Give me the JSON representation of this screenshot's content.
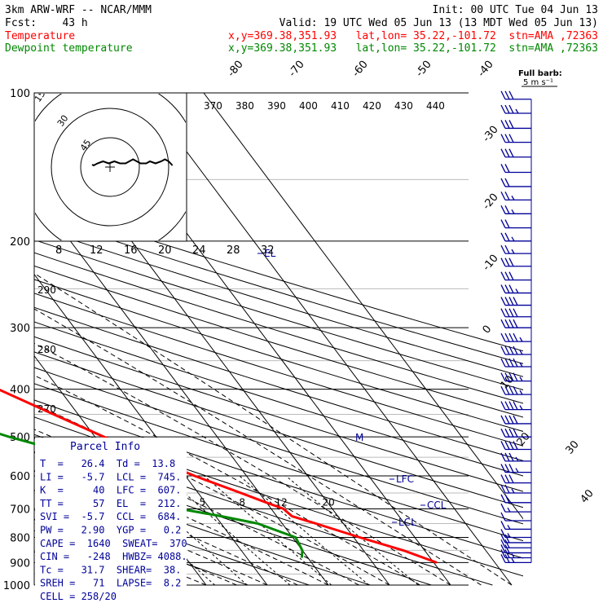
{
  "header": {
    "model": "3km ARW-WRF -- NCAR/MMM",
    "init": "Init: 00 UTC Tue 04 Jun 13",
    "fcst": "Fcst:    43 h",
    "valid": "Valid: 19 UTC Wed 05 Jun 13 (13 MDT Wed 05 Jun 13)",
    "temp_label": "Temperature",
    "temp_loc": "x,y=369.38,351.93   lat,lon= 35.22,-101.72  stn=AMA ,72363",
    "dew_label": "Dewpoint temperature",
    "dew_loc": "x,y=369.38,351.93   lat,lon= 35.22,-101.72  stn=AMA ,72363"
  },
  "colors": {
    "temperature": "#ff0000",
    "dewpoint": "#008800",
    "text_blue": "#000099",
    "grid": "#000000"
  },
  "chart_data": {
    "type": "line",
    "y_axis": "pressure (hPa, log)",
    "ylim": [
      1000,
      100
    ],
    "pressure_ticks": [
      "100",
      "200",
      "300",
      "400",
      "500",
      "600",
      "700",
      "800",
      "900",
      "1000"
    ],
    "isotherm_labels": [
      "-80",
      "-70",
      "-60",
      "-50",
      "-40",
      "-30",
      "-20",
      "-10",
      "0",
      "10",
      "20",
      "30",
      "40"
    ],
    "theta_labels_top": [
      "370",
      "380",
      "390",
      "400",
      "410",
      "420",
      "430",
      "440"
    ],
    "theta_labels_left": [
      "290",
      "280",
      "270"
    ],
    "mixing_ratio_labels": [
      "2",
      "3",
      "5",
      "8",
      "12",
      "20"
    ],
    "hodograph_speed_labels": [
      "8",
      "12",
      "16",
      "20",
      "24",
      "28",
      "32"
    ],
    "hodograph_ring_labels": [
      "15",
      "30",
      "45"
    ],
    "hodograph_units": "kts",
    "barb_label": "Full barb:",
    "barb_value": "5 m s⁻¹",
    "markers": {
      "lfc": "LFC",
      "lcl": "LCL",
      "ccl": "CCL",
      "el": "EL",
      "m": "M"
    },
    "series": [
      {
        "name": "Temperature",
        "color": "#ff0000",
        "pressure": [
          900,
          850,
          800,
          750,
          725,
          700,
          680,
          650,
          600,
          550,
          500,
          450,
          400,
          350,
          300,
          250,
          200,
          175,
          150,
          125,
          100
        ],
        "temperature_c": [
          30.5,
          26.5,
          21.0,
          15.5,
          12.5,
          12.0,
          10.0,
          7.0,
          1.5,
          -3.5,
          -8.5,
          -14.0,
          -20.0,
          -27.5,
          -36.0,
          -46.0,
          -56.5,
          -58.0,
          -59.0,
          -60.0,
          -62.0
        ]
      },
      {
        "name": "Dewpoint temperature",
        "color": "#008800",
        "pressure": [
          880,
          850,
          800,
          750,
          725,
          700,
          650,
          600,
          560,
          520,
          500,
          450,
          400,
          360,
          330,
          300,
          270,
          250,
          230,
          200,
          180,
          150,
          120,
          100
        ],
        "dewpoint_c": [
          9.0,
          10.0,
          10.5,
          6.0,
          1.0,
          -5.0,
          -10.0,
          -13.0,
          -15.0,
          -20.0,
          -24.0,
          -33.0,
          -43.0,
          -48.0,
          -48.5,
          -52.0,
          -60.0,
          -68.0,
          -75.0,
          -80.0,
          -82.0,
          -85.0,
          -88.0,
          -91.0
        ]
      }
    ],
    "winds": [
      {
        "p": 900,
        "flags": 0,
        "full": 2,
        "half": 1
      },
      {
        "p": 880,
        "flags": 0,
        "full": 2,
        "half": 1
      },
      {
        "p": 860,
        "flags": 0,
        "full": 2,
        "half": 0
      },
      {
        "p": 840,
        "flags": 0,
        "full": 2,
        "half": 0
      },
      {
        "p": 820,
        "flags": 0,
        "full": 2,
        "half": 0
      },
      {
        "p": 800,
        "flags": 0,
        "full": 1,
        "half": 1
      },
      {
        "p": 770,
        "flags": 0,
        "full": 1,
        "half": 1
      },
      {
        "p": 740,
        "flags": 0,
        "full": 1,
        "half": 0
      },
      {
        "p": 710,
        "flags": 0,
        "full": 1,
        "half": 1
      },
      {
        "p": 680,
        "flags": 0,
        "full": 2,
        "half": 0
      },
      {
        "p": 650,
        "flags": 0,
        "full": 2,
        "half": 1
      },
      {
        "p": 620,
        "flags": 0,
        "full": 3,
        "half": 0
      },
      {
        "p": 590,
        "flags": 0,
        "full": 3,
        "half": 1
      },
      {
        "p": 560,
        "flags": 0,
        "full": 3,
        "half": 1
      },
      {
        "p": 530,
        "flags": 0,
        "full": 4,
        "half": 0
      },
      {
        "p": 500,
        "flags": 0,
        "full": 4,
        "half": 0
      },
      {
        "p": 470,
        "flags": 0,
        "full": 4,
        "half": 0
      },
      {
        "p": 440,
        "flags": 0,
        "full": 4,
        "half": 1
      },
      {
        "p": 410,
        "flags": 0,
        "full": 4,
        "half": 1
      },
      {
        "p": 385,
        "flags": 0,
        "full": 4,
        "half": 1
      },
      {
        "p": 360,
        "flags": 0,
        "full": 4,
        "half": 1
      },
      {
        "p": 340,
        "flags": 0,
        "full": 4,
        "half": 1
      },
      {
        "p": 320,
        "flags": 0,
        "full": 4,
        "half": 1
      },
      {
        "p": 300,
        "flags": 0,
        "full": 4,
        "half": 0
      },
      {
        "p": 285,
        "flags": 0,
        "full": 4,
        "half": 0
      },
      {
        "p": 270,
        "flags": 0,
        "full": 4,
        "half": 0
      },
      {
        "p": 255,
        "flags": 0,
        "full": 3,
        "half": 1
      },
      {
        "p": 240,
        "flags": 0,
        "full": 3,
        "half": 0
      },
      {
        "p": 225,
        "flags": 0,
        "full": 3,
        "half": 0
      },
      {
        "p": 212,
        "flags": 0,
        "full": 2,
        "half": 1
      },
      {
        "p": 200,
        "flags": 0,
        "full": 2,
        "half": 1
      },
      {
        "p": 188,
        "flags": 0,
        "full": 2,
        "half": 0
      },
      {
        "p": 176,
        "flags": 0,
        "full": 2,
        "half": 1
      },
      {
        "p": 165,
        "flags": 0,
        "full": 2,
        "half": 1
      },
      {
        "p": 155,
        "flags": 0,
        "full": 2,
        "half": 0
      },
      {
        "p": 145,
        "flags": 0,
        "full": 2,
        "half": 0
      },
      {
        "p": 135,
        "flags": 0,
        "full": 3,
        "half": 0
      },
      {
        "p": 126,
        "flags": 0,
        "full": 3,
        "half": 0
      },
      {
        "p": 118,
        "flags": 0,
        "full": 3,
        "half": 0
      },
      {
        "p": 110,
        "flags": 0,
        "full": 3,
        "half": 1
      },
      {
        "p": 103,
        "flags": 0,
        "full": 3,
        "half": 0
      }
    ],
    "hodograph": [
      [
        0,
        0
      ],
      [
        2,
        1
      ],
      [
        5,
        2
      ],
      [
        8,
        1
      ],
      [
        11,
        2
      ],
      [
        14,
        1
      ],
      [
        17,
        1
      ],
      [
        19,
        2
      ],
      [
        21,
        3
      ],
      [
        23,
        2
      ],
      [
        25,
        1
      ],
      [
        28,
        1
      ],
      [
        30,
        2
      ],
      [
        33,
        1
      ],
      [
        36,
        2
      ],
      [
        38,
        3
      ],
      [
        40,
        2
      ],
      [
        42,
        0
      ]
    ]
  },
  "parcel": {
    "title": "Parcel Info",
    "rows": [
      "T  =   26.4  Td =  13.8",
      "LI =   -5.7  LCL =  745.",
      "K  =     40  LFC =  607.",
      "TT =     57  EL  =  212.",
      "SVI =  -5.7  CCL =  684.",
      "PW =   2.90  YGP =   0.2",
      "CAPE =  1640  SWEAT=  370",
      "CIN =   -248  HWBZ= 4088.",
      "Tc =   31.7  SHEAR=  38.",
      "SREH =   71  LAPSE=  8.2",
      "CELL = 258/20"
    ]
  }
}
